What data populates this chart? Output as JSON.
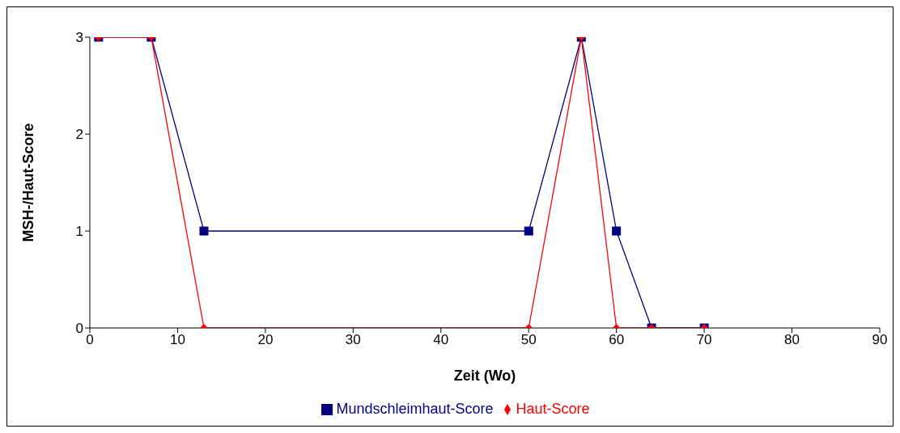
{
  "chart_data": {
    "type": "line",
    "xlabel": "Zeit (Wo)",
    "ylabel": "MSH-/Haut-Score",
    "x": [
      1,
      7,
      13,
      50,
      56,
      60,
      64,
      70
    ],
    "series": [
      {
        "name": "Mundschleimhaut-Score",
        "color": "#000080",
        "marker": "square",
        "values": [
          3,
          3,
          1,
          1,
          3,
          1,
          0,
          0
        ]
      },
      {
        "name": "Haut-Score",
        "color": "#ff0000",
        "marker": "diamond",
        "values": [
          3,
          3,
          0,
          0,
          3,
          0,
          0,
          0
        ]
      }
    ],
    "xlim": [
      0,
      90
    ],
    "xticks": [
      0,
      10,
      20,
      30,
      40,
      50,
      60,
      70,
      80,
      90
    ],
    "ylim": [
      0,
      3
    ],
    "yticks": [
      0,
      1,
      2,
      3
    ],
    "grid": false,
    "legend": "bottom",
    "line_style": "solid"
  }
}
